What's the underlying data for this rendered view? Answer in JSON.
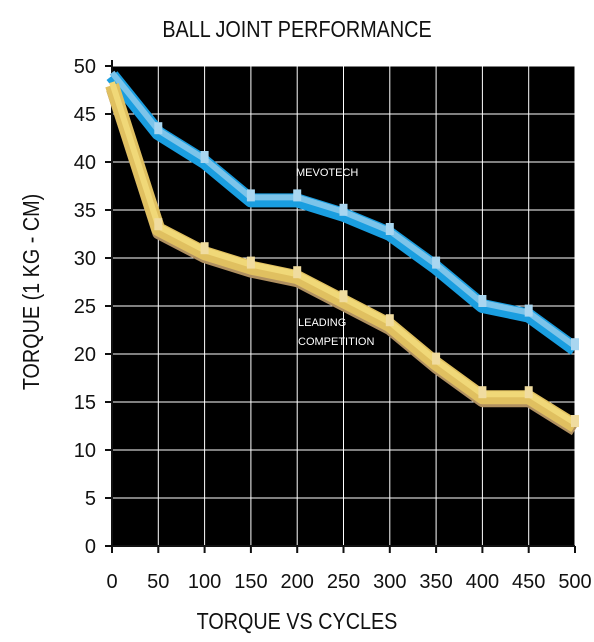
{
  "chart_data": {
    "type": "line",
    "title": "BALL JOINT PERFORMANCE",
    "xlabel": "TORQUE VS CYCLES",
    "ylabel": "TORQUE (1 KG - CM)",
    "x": [
      0,
      50,
      100,
      150,
      200,
      250,
      300,
      350,
      400,
      450,
      500
    ],
    "xlim": [
      0,
      500
    ],
    "ylim": [
      0,
      50
    ],
    "xticks": [
      "0",
      "50",
      "100",
      "150",
      "200",
      "250",
      "300",
      "350",
      "400",
      "450",
      "500"
    ],
    "yticks": [
      "0",
      "5",
      "10",
      "15",
      "20",
      "25",
      "30",
      "35",
      "40",
      "45",
      "50"
    ],
    "grid": true,
    "series": [
      {
        "name": "MEVOTECH",
        "values": [
          49,
          43,
          40,
          36,
          36,
          34.5,
          32.5,
          29,
          25,
          24,
          20.5
        ],
        "color": "#1a9ee0",
        "highlight": "#7cc4ea",
        "marker_color": "#a9d6f0"
      },
      {
        "name": "LEADING\nCOMPETITION",
        "values": [
          48,
          33,
          30.5,
          29,
          28,
          25.5,
          23,
          19,
          15.5,
          15.5,
          12.5
        ],
        "color": "#e0c060",
        "highlight": "#f0d878",
        "shadow": "#b09060",
        "marker_color": "#f0dca0"
      }
    ],
    "annotations": [
      {
        "text": "MEVOTECH",
        "series": 0
      },
      {
        "text": "LEADING",
        "series": 1
      },
      {
        "text": "COMPETITION",
        "series": 1
      }
    ],
    "plot_background": "#000000",
    "grid_color": "#ffffff"
  }
}
